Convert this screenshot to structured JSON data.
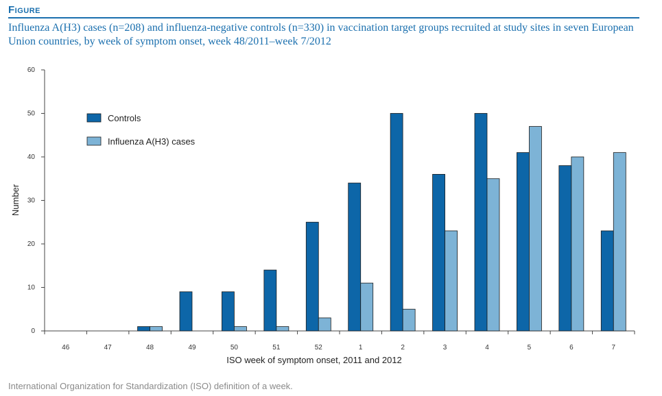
{
  "figure": {
    "label": "Figure",
    "title": "Influenza A(H3) cases (n=208) and influenza-negative controls (n=330) in vaccination target groups recruited at study sites in seven European Union countries, by week of symptom onset, week 48/2011–week 7/2012",
    "note": "International Organization for Standardization (ISO) definition of a week."
  },
  "chart_data": {
    "type": "bar",
    "categories": [
      "46",
      "47",
      "48",
      "49",
      "50",
      "51",
      "52",
      "1",
      "2",
      "3",
      "4",
      "5",
      "6",
      "7"
    ],
    "series": [
      {
        "name": "Controls",
        "color": "#0d66a8",
        "values": [
          0,
          0,
          1,
          9,
          9,
          14,
          25,
          34,
          50,
          36,
          50,
          41,
          38,
          23
        ]
      },
      {
        "name": "Influenza A(H3) cases",
        "color": "#7db3d6",
        "values": [
          0,
          0,
          1,
          0,
          1,
          1,
          3,
          11,
          5,
          23,
          35,
          47,
          40,
          41
        ]
      }
    ],
    "xlabel": "ISO week of symptom onset, 2011 and 2012",
    "ylabel": "Number",
    "ylim": [
      0,
      60
    ],
    "yticks": [
      0,
      10,
      20,
      30,
      40,
      50,
      60
    ],
    "legend_position": "top-left",
    "grid": false
  }
}
